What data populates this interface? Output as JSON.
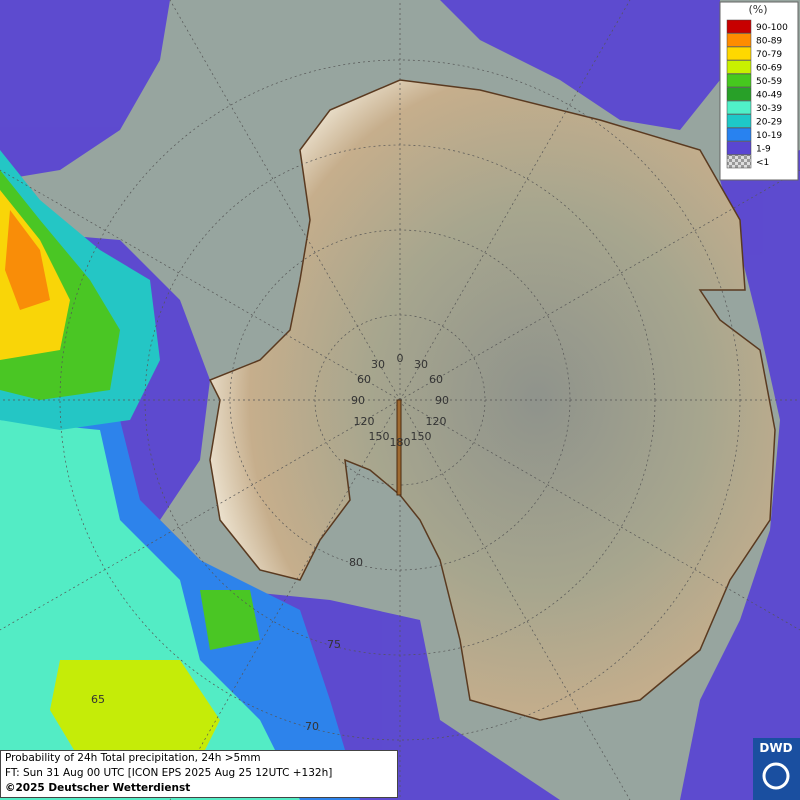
{
  "legend": {
    "title": "(%)",
    "items": [
      {
        "label": "90-100",
        "color": "#c80000"
      },
      {
        "label": "80-89",
        "color": "#ff8c00"
      },
      {
        "label": "70-79",
        "color": "#ffd800"
      },
      {
        "label": "60-69",
        "color": "#c8f000"
      },
      {
        "label": "50-59",
        "color": "#46c81e"
      },
      {
        "label": "40-49",
        "color": "#28a028"
      },
      {
        "label": "30-39",
        "color": "#50f0c8"
      },
      {
        "label": "20-29",
        "color": "#1ec8c8"
      },
      {
        "label": "10-19",
        "color": "#2882f0"
      },
      {
        "label": "1-9",
        "color": "#5a46d2"
      },
      {
        "label": "<1",
        "color": "#b4b4b4"
      }
    ]
  },
  "graticule": {
    "longitudes": [
      "0",
      "30",
      "30",
      "60",
      "60",
      "90",
      "90",
      "120",
      "120",
      "150",
      "150",
      "180"
    ],
    "latitudes": [
      "80",
      "75",
      "70",
      "65"
    ]
  },
  "caption": {
    "line1": "Probability of 24h Total precipitation, 24h >5mm",
    "line2": "FT: Sun 31 Aug 00 UTC [ICON EPS 2025 Aug 25 12UTC +132h]",
    "line3": "©2025 Deutscher Wetterdienst"
  },
  "logo": "DWD"
}
